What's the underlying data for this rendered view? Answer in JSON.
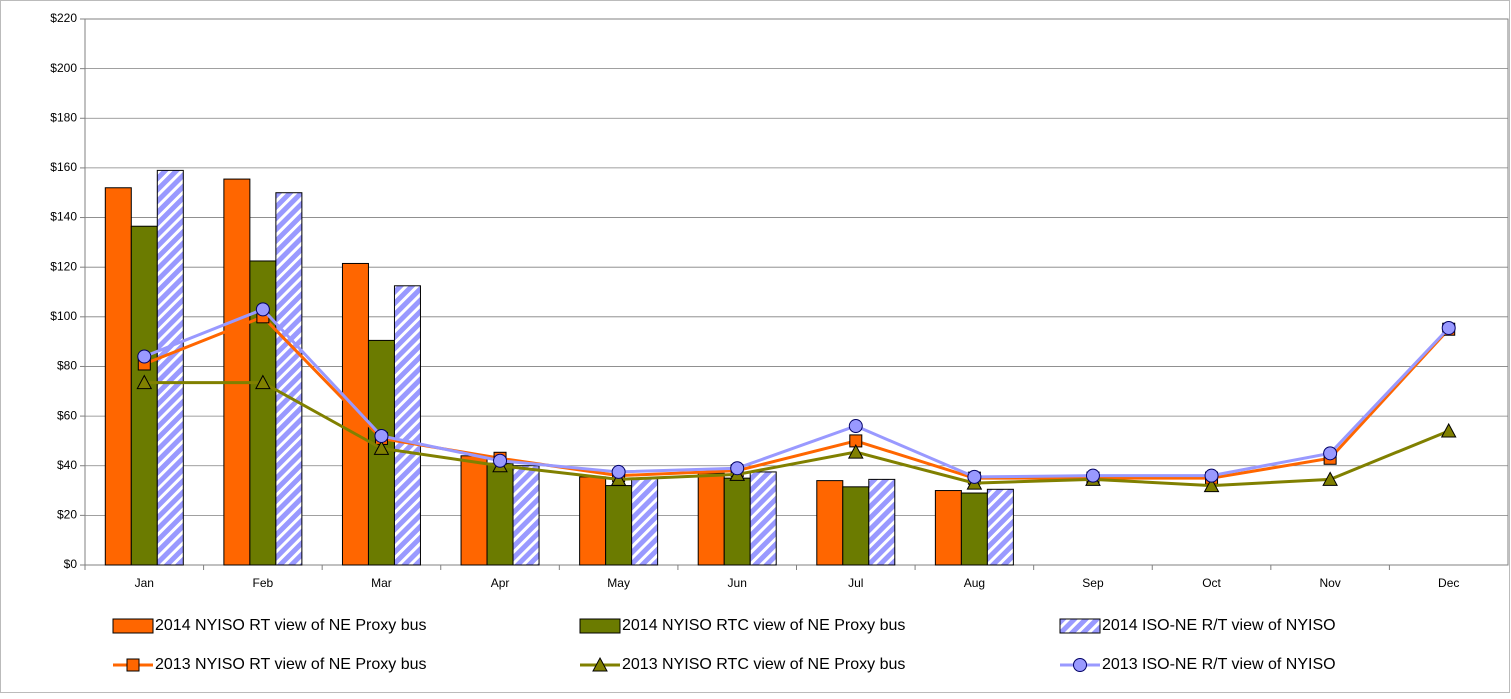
{
  "chart_data": {
    "type": "bar",
    "categories": [
      "Jan",
      "Feb",
      "Mar",
      "Apr",
      "May",
      "Jun",
      "Jul",
      "Aug",
      "Sep",
      "Oct",
      "Nov",
      "Dec"
    ],
    "ylim": [
      0,
      220
    ],
    "yticks": [
      {
        "value": 0,
        "label": "$0"
      },
      {
        "value": 20,
        "label": "$20"
      },
      {
        "value": 40,
        "label": "$40"
      },
      {
        "value": 60,
        "label": "$60"
      },
      {
        "value": 80,
        "label": "$80"
      },
      {
        "value": 100,
        "label": "$100"
      },
      {
        "value": 120,
        "label": "$120"
      },
      {
        "value": 140,
        "label": "$140"
      },
      {
        "value": 160,
        "label": "$160"
      },
      {
        "value": 180,
        "label": "$180"
      },
      {
        "value": 200,
        "label": "$200"
      },
      {
        "value": 220,
        "label": "$220"
      }
    ],
    "grid": true,
    "series": [
      {
        "name": "2014 NYISO RT view of NE Proxy bus",
        "type": "bar",
        "color": "#ff6600",
        "values": [
          152,
          155.5,
          121.5,
          44,
          35.5,
          37,
          34,
          30,
          null,
          null,
          null,
          null
        ]
      },
      {
        "name": "2014 NYISO RTC view of NE Proxy bus",
        "type": "bar",
        "color": "#6b7b00",
        "values": [
          136.5,
          122.5,
          90.5,
          41,
          32,
          35,
          31.5,
          29,
          null,
          null,
          null,
          null
        ]
      },
      {
        "name": "2014 ISO-NE R/T view of NYISO",
        "type": "bar",
        "color": "#9999ff",
        "pattern": "hatch",
        "values": [
          159,
          150,
          112.5,
          40,
          35,
          37.5,
          34.5,
          30.5,
          null,
          null,
          null,
          null
        ]
      },
      {
        "name": "2013 NYISO RT view of NE Proxy bus",
        "type": "line",
        "color": "#ff6600",
        "marker": "square",
        "values": [
          81,
          100,
          51,
          43,
          36,
          38,
          50,
          35,
          35,
          35,
          43,
          95
        ]
      },
      {
        "name": "2013 NYISO RTC view of NE Proxy bus",
        "type": "line",
        "color": "#808000",
        "marker": "triangle",
        "values": [
          73.5,
          73.5,
          47,
          40,
          34.5,
          36.5,
          45.5,
          33,
          34.5,
          32,
          34.5,
          54
        ]
      },
      {
        "name": "2013 ISO-NE R/T view of NYISO",
        "type": "line",
        "color": "#9999ff",
        "marker": "circle",
        "values": [
          84,
          103,
          52,
          42,
          37.5,
          39,
          56,
          35.5,
          36,
          36,
          45,
          95.5
        ]
      }
    ]
  }
}
